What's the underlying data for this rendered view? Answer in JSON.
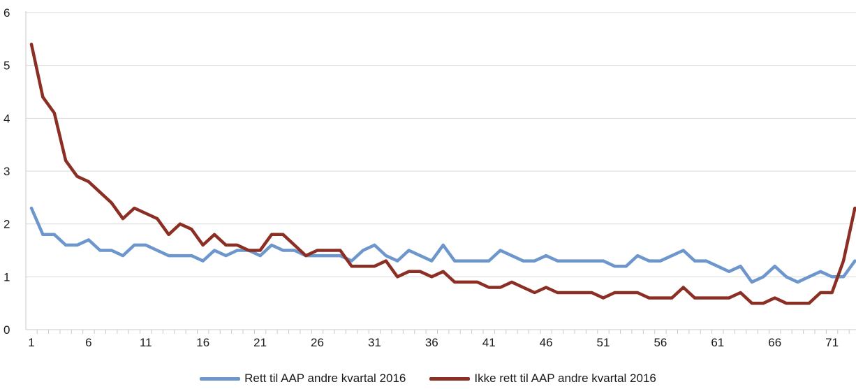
{
  "chart_data": {
    "type": "line",
    "title": "",
    "xlabel": "",
    "ylabel": "",
    "ylim": [
      0,
      6
    ],
    "yticks": [
      0,
      1,
      2,
      3,
      4,
      5,
      6
    ],
    "xticks": [
      1,
      6,
      11,
      16,
      21,
      26,
      31,
      36,
      41,
      46,
      51,
      56,
      61,
      66,
      71
    ],
    "grid": "horizontal",
    "legend_position": "bottom",
    "x": [
      1,
      2,
      3,
      4,
      5,
      6,
      7,
      8,
      9,
      10,
      11,
      12,
      13,
      14,
      15,
      16,
      17,
      18,
      19,
      20,
      21,
      22,
      23,
      24,
      25,
      26,
      27,
      28,
      29,
      30,
      31,
      32,
      33,
      34,
      35,
      36,
      37,
      38,
      39,
      40,
      41,
      42,
      43,
      44,
      45,
      46,
      47,
      48,
      49,
      50,
      51,
      52,
      53,
      54,
      55,
      56,
      57,
      58,
      59,
      60,
      61,
      62,
      63,
      64,
      65,
      66,
      67,
      68,
      69,
      70,
      71,
      72,
      73
    ],
    "series": [
      {
        "name": "Rett til AAP andre kvartal 2016",
        "color": "#6d97cc",
        "values": [
          2.3,
          1.8,
          1.8,
          1.6,
          1.6,
          1.7,
          1.5,
          1.5,
          1.4,
          1.6,
          1.6,
          1.5,
          1.4,
          1.4,
          1.4,
          1.3,
          1.5,
          1.4,
          1.5,
          1.5,
          1.4,
          1.6,
          1.5,
          1.5,
          1.4,
          1.4,
          1.4,
          1.4,
          1.3,
          1.5,
          1.6,
          1.4,
          1.3,
          1.5,
          1.4,
          1.3,
          1.6,
          1.3,
          1.3,
          1.3,
          1.3,
          1.5,
          1.4,
          1.3,
          1.3,
          1.4,
          1.3,
          1.3,
          1.3,
          1.3,
          1.3,
          1.2,
          1.2,
          1.4,
          1.3,
          1.3,
          1.4,
          1.5,
          1.3,
          1.3,
          1.2,
          1.1,
          1.2,
          0.9,
          1.0,
          1.2,
          1.0,
          0.9,
          1.0,
          1.1,
          1.0,
          1.0,
          1.3
        ]
      },
      {
        "name": "Ikke rett til AAP andre kvartal 2016",
        "color": "#8b2e24",
        "values": [
          5.4,
          4.4,
          4.1,
          3.2,
          2.9,
          2.8,
          2.6,
          2.4,
          2.1,
          2.3,
          2.2,
          2.1,
          1.8,
          2.0,
          1.9,
          1.6,
          1.8,
          1.6,
          1.6,
          1.5,
          1.5,
          1.8,
          1.8,
          1.6,
          1.4,
          1.5,
          1.5,
          1.5,
          1.2,
          1.2,
          1.2,
          1.3,
          1.0,
          1.1,
          1.1,
          1.0,
          1.1,
          0.9,
          0.9,
          0.9,
          0.8,
          0.8,
          0.9,
          0.8,
          0.7,
          0.8,
          0.7,
          0.7,
          0.7,
          0.7,
          0.6,
          0.7,
          0.7,
          0.7,
          0.6,
          0.6,
          0.6,
          0.8,
          0.6,
          0.6,
          0.6,
          0.6,
          0.7,
          0.5,
          0.5,
          0.6,
          0.5,
          0.5,
          0.5,
          0.7,
          0.7,
          1.3,
          2.3
        ]
      }
    ]
  }
}
